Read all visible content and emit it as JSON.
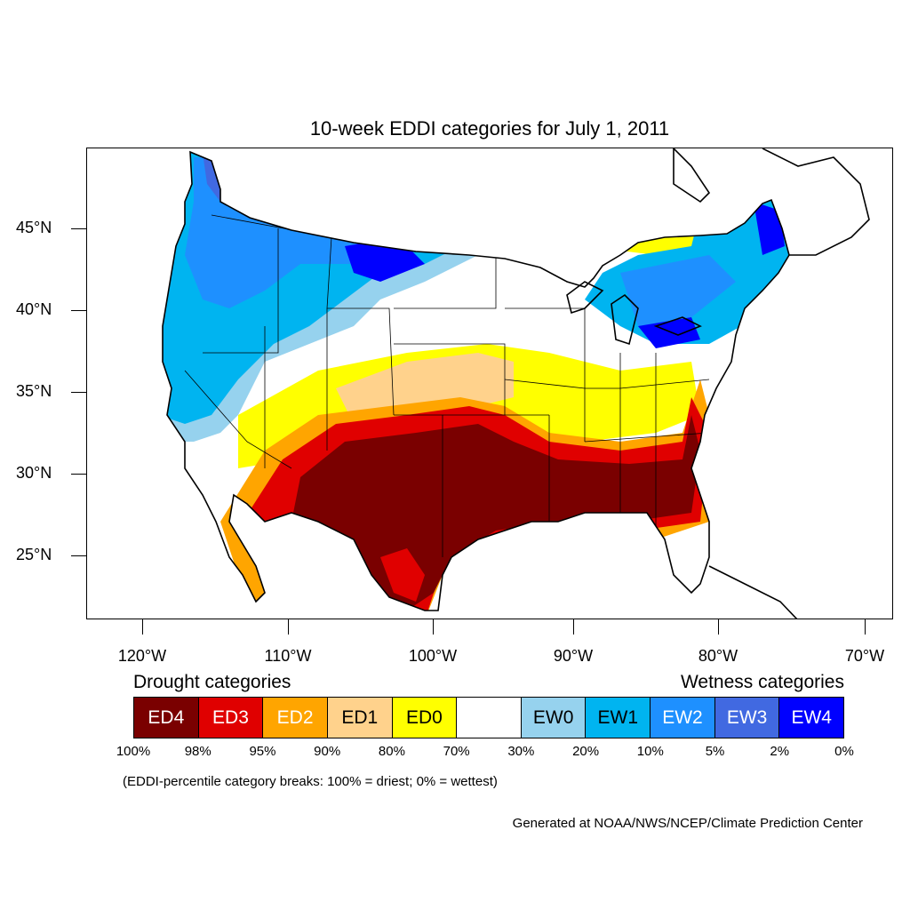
{
  "title": "10-week EDDI categories for July 1, 2011",
  "lat_labels": [
    "45°N",
    "40°N",
    "35°N",
    "30°N",
    "25°N"
  ],
  "lon_labels": [
    "120°W",
    "110°W",
    "100°W",
    "90°W",
    "80°W",
    "70°W"
  ],
  "legend": {
    "drought_title": "Drought categories",
    "wetness_title": "Wetness categories",
    "categories": [
      {
        "label": "ED4",
        "color": "#7a0000",
        "text_color": "#ffffff"
      },
      {
        "label": "ED3",
        "color": "#e00000",
        "text_color": "#ffffff"
      },
      {
        "label": "ED2",
        "color": "#ffa500",
        "text_color": "#ffffff"
      },
      {
        "label": "ED1",
        "color": "#ffd28c",
        "text_color": "#000000"
      },
      {
        "label": "ED0",
        "color": "#ffff00",
        "text_color": "#000000"
      },
      {
        "label": "",
        "color": "#ffffff",
        "text_color": "#000000"
      },
      {
        "label": "EW0",
        "color": "#96d2ee",
        "text_color": "#000000"
      },
      {
        "label": "EW1",
        "color": "#00b4f0",
        "text_color": "#000000"
      },
      {
        "label": "EW2",
        "color": "#1e90ff",
        "text_color": "#ffffff"
      },
      {
        "label": "EW3",
        "color": "#4169e1",
        "text_color": "#ffffff"
      },
      {
        "label": "EW4",
        "color": "#0000ff",
        "text_color": "#ffffff"
      }
    ],
    "percentiles": [
      "100%",
      "98%",
      "95%",
      "90%",
      "80%",
      "70%",
      "30%",
      "20%",
      "10%",
      "5%",
      "2%",
      "0%"
    ]
  },
  "note": "(EDDI-percentile category breaks: 100% = driest; 0% = wettest)",
  "credit": "Generated at NOAA/NWS/NCEP/Climate Prediction Center"
}
